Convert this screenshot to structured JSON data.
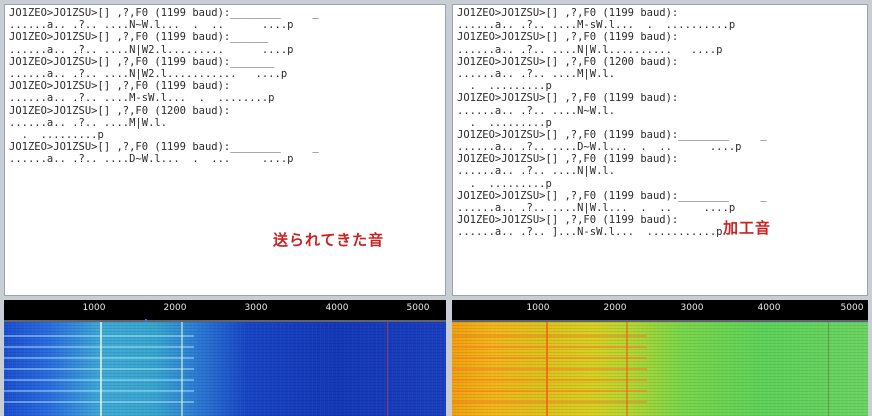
{
  "left_panel": {
    "lines": [
      "JO1ZEO>JO1ZSU>[] ,?,F0 (1199 baud):________     _",
      "......a.. .?.. ....N~W.l...  .  ..      ....p",
      "JO1ZEO>JO1ZSU>[] ,?,F0 (1199 baud):______",
      "......a.. .?.. ....N|W2.l.........      ....p",
      "JO1ZEO>JO1ZSU>[] ,?,F0 (1199 baud):_______",
      "......a.. .?.. ....N|W2.l...........   ....p",
      "JO1ZEO>JO1ZSU>[] ,?,F0 (1199 baud):",
      "......a.. .?.. ....M-sW.l...  .  ........p",
      "JO1ZEO>JO1ZSU>[] ,?,F0 (1200 baud):",
      "......a.. .?.. ....M|W.l.",
      "  .  .........p",
      "JO1ZEO>JO1ZSU>[] ,?,F0 (1199 baud):________     _",
      "......a.. .?.. ....D~W.l...  .  ...     ....p"
    ],
    "caption": "送られてきた音"
  },
  "right_panel": {
    "lines": [
      "JO1ZEO>JO1ZSU>[] ,?,F0 (1199 baud):",
      "......a.. .?.. ....M-sW.l...  .  ..........p",
      "JO1ZEO>JO1ZSU>[] ,?,F0 (1199 baud):",
      "......a.. .?.. ....N|W.l..........   ....p",
      "JO1ZEO>JO1ZSU>[] ,?,F0 (1200 baud):",
      "......a.. .?.. ....M|W.l.",
      "  .  .........p",
      "JO1ZEO>JO1ZSU>[] ,?,F0 (1199 baud):",
      "......a.. .?.. ....N~W.l.",
      "  .  .........p",
      "JO1ZEO>JO1ZSU>[] ,?,F0 (1199 baud):________     _",
      "......a.. .?.. ....D~W.l...  .  ..      ....p",
      "JO1ZEO>JO1ZSU>[] ,?,F0 (1199 baud):",
      "......a.. .?.. ....N|W.l.",
      "  .  .........p",
      "JO1ZEO>JO1ZSU>[] ,?,F0 (1199 baud):________     _",
      "......a.. .?.. ....N|W.l...  .  ..     ....p",
      "JO1ZEO>JO1ZSU>[] ,?,F0 (1199 baud):",
      "......a.. .?.. ]...N-sW.l...  ...........p"
    ],
    "caption": "加工音"
  },
  "waterfall": {
    "scale_labels": [
      "1000",
      "2000",
      "3000",
      "4000",
      "5000"
    ],
    "left_colors": {
      "scale_bg": "#000000",
      "base": "#1845c6",
      "signal": "#3fa9d6",
      "marker": "#ffffff"
    },
    "right_colors": {
      "scale_bg": "#000000",
      "base": "#f0a20e",
      "signal": "#7bd64a",
      "marker": "#ffffff"
    }
  }
}
